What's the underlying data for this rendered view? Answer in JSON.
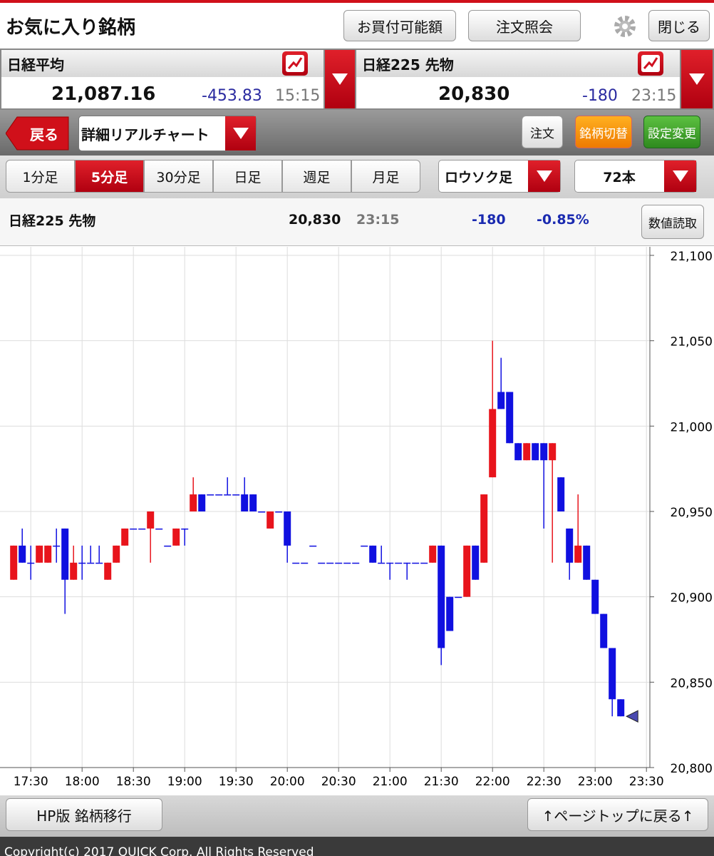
{
  "header": {
    "title": "お気に入り銘柄",
    "buttons": [
      "お買付可能額",
      "注文照会",
      "閉じる"
    ]
  },
  "quotes": [
    {
      "name": "日経平均",
      "price": "21,087.16",
      "change": "-453.83",
      "time": "15:15"
    },
    {
      "name": "日経225 先物",
      "price": "20,830",
      "change": "-180",
      "time": "23:15"
    }
  ],
  "toolbar": {
    "back": "戻る",
    "view": "詳細リアルチャート",
    "buttons": [
      "注文",
      "銘柄切替",
      "設定変更"
    ]
  },
  "tabs": [
    "1分足",
    "5分足",
    "30分足",
    "日足",
    "週足",
    "月足"
  ],
  "active_tab": 1,
  "chart_style": "ロウソク足",
  "bar_count": "72本",
  "info": {
    "name": "日経225 先物",
    "price": "20,830",
    "time": "23:15",
    "change": "-180",
    "change_pct": "-0.85%",
    "button": "数値読取"
  },
  "footer": {
    "buttons": [
      "HP版 銘柄移行",
      "↑ページトップに戻る↑"
    ],
    "copyright": "Copyright(c) 2017 QUICK Corp. All Rights Reserved"
  },
  "chart_data": {
    "type": "candlestick",
    "up_color": "#e8141c",
    "down_color": "#1010e0",
    "grid": true,
    "y_axis": "right",
    "x": [
      1040,
      1045,
      1050,
      1055,
      1060,
      1065,
      1070,
      1075,
      1080,
      1085,
      1090,
      1095,
      1100,
      1105,
      1110,
      1115,
      1120,
      1125,
      1130,
      1135,
      1140,
      1145,
      1150,
      1155,
      1160,
      1165,
      1170,
      1175,
      1180,
      1185,
      1190,
      1195,
      1200,
      1205,
      1210,
      1215,
      1220,
      1225,
      1230,
      1235,
      1240,
      1245,
      1250,
      1255,
      1260,
      1265,
      1270,
      1275,
      1280,
      1285,
      1290,
      1295,
      1300,
      1305,
      1310,
      1315,
      1320,
      1325,
      1330,
      1335,
      1340,
      1345,
      1350,
      1355,
      1360,
      1365,
      1370,
      1375,
      1380,
      1385,
      1390,
      1395
    ],
    "open": [
      20910,
      20930,
      20920,
      20920,
      20920,
      20930,
      20940,
      20910,
      20920,
      20920,
      20920,
      20910,
      20920,
      20930,
      20940,
      20940,
      20940,
      20940,
      20930,
      20930,
      20940,
      20950,
      20960,
      20960,
      20960,
      20960,
      20960,
      20960,
      20960,
      20950,
      20940,
      20950,
      20950,
      20920,
      20920,
      20930,
      20920,
      20920,
      20920,
      20920,
      20920,
      20930,
      20930,
      20920,
      20920,
      20920,
      20920,
      20920,
      20920,
      20920,
      20930,
      20900,
      20900,
      20900,
      20930,
      20920,
      20970,
      21020,
      21020,
      20990,
      20980,
      20990,
      20990,
      20980,
      20970,
      20940,
      20920,
      20930,
      20910,
      20890,
      20870,
      20840
    ],
    "high": [
      20930,
      20940,
      20930,
      20930,
      20930,
      20940,
      20940,
      20930,
      20930,
      20930,
      20930,
      20920,
      20930,
      20940,
      20940,
      20940,
      20950,
      20940,
      20930,
      20940,
      20940,
      20970,
      20960,
      20960,
      20960,
      20970,
      20960,
      20970,
      20960,
      20950,
      20950,
      20950,
      20950,
      20920,
      20920,
      20930,
      20920,
      20920,
      20920,
      20920,
      20920,
      20930,
      20930,
      20930,
      20920,
      20920,
      20920,
      20920,
      20920,
      20930,
      20930,
      20900,
      20900,
      20930,
      20930,
      20960,
      21050,
      21040,
      21020,
      20990,
      20990,
      20990,
      20990,
      20990,
      20970,
      20940,
      20960,
      20930,
      20910,
      20890,
      20870,
      20840
    ],
    "low": [
      20910,
      20920,
      20910,
      20920,
      20920,
      20920,
      20890,
      20910,
      20910,
      20920,
      20920,
      20910,
      20920,
      20930,
      20940,
      20940,
      20920,
      20940,
      20930,
      20930,
      20930,
      20950,
      20950,
      20960,
      20960,
      20960,
      20960,
      20950,
      20950,
      20950,
      20940,
      20950,
      20920,
      20920,
      20920,
      20930,
      20920,
      20920,
      20920,
      20920,
      20920,
      20930,
      20920,
      20920,
      20910,
      20920,
      20910,
      20920,
      20920,
      20920,
      20860,
      20880,
      20900,
      20900,
      20910,
      20920,
      20970,
      21010,
      20990,
      20980,
      20980,
      20980,
      20940,
      20920,
      20950,
      20910,
      20920,
      20910,
      20890,
      20870,
      20830,
      20830
    ],
    "close": [
      20930,
      20920,
      20920,
      20930,
      20930,
      20930,
      20910,
      20920,
      20920,
      20920,
      20920,
      20920,
      20930,
      20940,
      20940,
      20940,
      20950,
      20940,
      20930,
      20940,
      20940,
      20960,
      20950,
      20960,
      20960,
      20960,
      20960,
      20950,
      20950,
      20950,
      20950,
      20950,
      20930,
      20920,
      20920,
      20930,
      20920,
      20920,
      20920,
      20920,
      20920,
      20930,
      20920,
      20920,
      20920,
      20920,
      20920,
      20920,
      20920,
      20930,
      20870,
      20880,
      20900,
      20930,
      20910,
      20960,
      21010,
      21010,
      20990,
      20980,
      20990,
      20980,
      20980,
      20990,
      20950,
      20920,
      20930,
      20910,
      20890,
      20870,
      20840,
      20830
    ],
    "xlim": [
      1037,
      1412
    ],
    "xticks": [
      {
        "value": 1050,
        "label": "17:30"
      },
      {
        "value": 1080,
        "label": "18:00"
      },
      {
        "value": 1110,
        "label": "18:30"
      },
      {
        "value": 1140,
        "label": "19:00"
      },
      {
        "value": 1170,
        "label": "19:30"
      },
      {
        "value": 1200,
        "label": "20:00"
      },
      {
        "value": 1230,
        "label": "20:30"
      },
      {
        "value": 1260,
        "label": "21:00"
      },
      {
        "value": 1290,
        "label": "21:30"
      },
      {
        "value": 1320,
        "label": "22:00"
      },
      {
        "value": 1350,
        "label": "22:30"
      },
      {
        "value": 1380,
        "label": "23:00"
      },
      {
        "value": 1410,
        "label": "23:30"
      }
    ],
    "ylim": [
      20800,
      21100
    ],
    "yticks": [
      {
        "value": 20800,
        "label": "20,800"
      },
      {
        "value": 20850,
        "label": "20,850"
      },
      {
        "value": 20900,
        "label": "20,900"
      },
      {
        "value": 20950,
        "label": "20,950"
      },
      {
        "value": 21000,
        "label": "21,000"
      },
      {
        "value": 21050,
        "label": "21,050"
      },
      {
        "value": 21100,
        "label": "21,100"
      }
    ]
  }
}
